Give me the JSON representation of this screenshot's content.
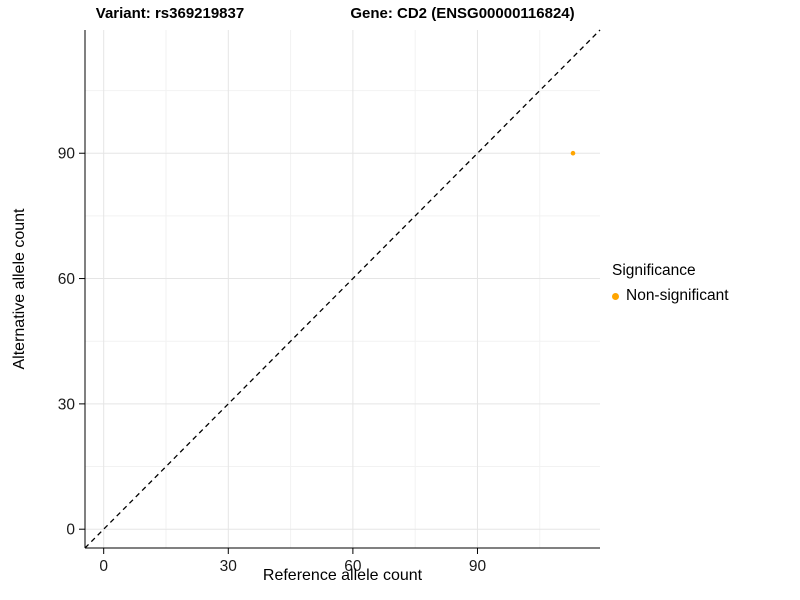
{
  "chart_data": {
    "type": "scatter",
    "titles": {
      "left": "Variant: rs369219837",
      "right": "Gene: CD2 (ENSG00000116824)"
    },
    "xlabel": "Reference allele count",
    "ylabel": "Alternative allele count",
    "xlim": [
      -4.5,
      119.5
    ],
    "ylim": [
      -4.5,
      119.5
    ],
    "xticks": [
      0,
      30,
      60,
      90
    ],
    "yticks": [
      0,
      30,
      60,
      90
    ],
    "minor_xticks": [
      15,
      45,
      75,
      105
    ],
    "minor_yticks": [
      15,
      45,
      75,
      105
    ],
    "grid": true,
    "identity_line": {
      "style": "dashed",
      "color": "#000000"
    },
    "series": [
      {
        "name": "Non-significant",
        "color": "#FFA googles500",
        "points": [
          {
            "x": 113,
            "y": 90
          }
        ]
      }
    ],
    "legend": {
      "title": "Significance",
      "position": "right",
      "entries": [
        {
          "label": "Non-significant",
          "color": "#FFA500"
        }
      ]
    },
    "colors": {
      "point": "#FFA500",
      "grid_major": "#e5e5e5",
      "grid_minor": "#f2f2f2",
      "axis": "#000000"
    }
  }
}
